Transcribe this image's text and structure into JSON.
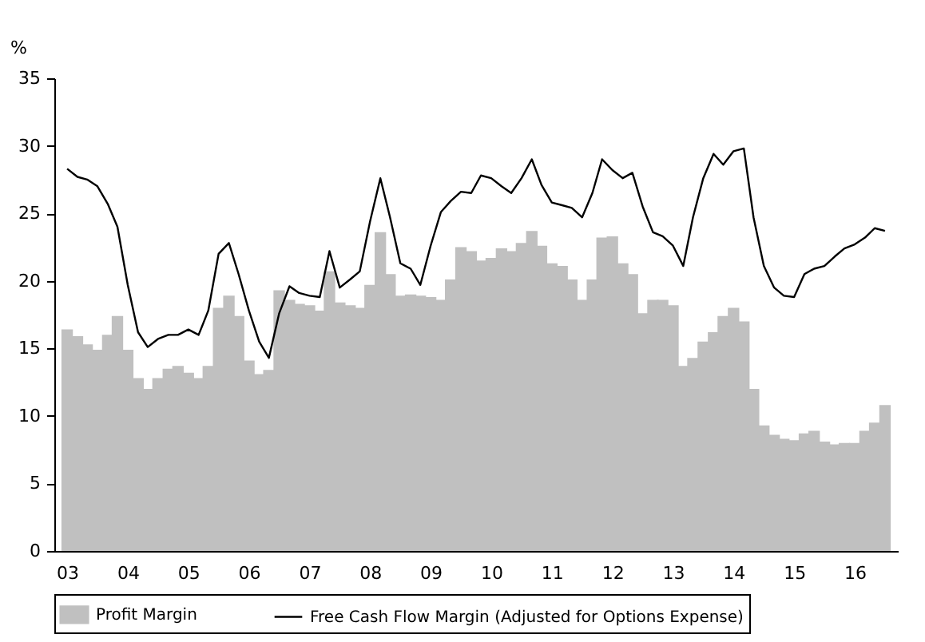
{
  "chart_data": {
    "type": "bar",
    "ylabel": "%",
    "x": [
      2003,
      2003.17,
      2003.33,
      2003.5,
      2003.67,
      2003.83,
      2004,
      2004.17,
      2004.33,
      2004.5,
      2004.67,
      2004.83,
      2005,
      2005.17,
      2005.33,
      2005.5,
      2005.67,
      2005.83,
      2006,
      2006.17,
      2006.33,
      2006.5,
      2006.67,
      2006.83,
      2007,
      2007.17,
      2007.33,
      2007.5,
      2007.67,
      2007.83,
      2008,
      2008.17,
      2008.33,
      2008.5,
      2008.67,
      2008.83,
      2009,
      2009.17,
      2009.33,
      2009.5,
      2009.67,
      2009.83,
      2010,
      2010.17,
      2010.33,
      2010.5,
      2010.67,
      2010.83,
      2011,
      2011.17,
      2011.33,
      2011.5,
      2011.67,
      2011.83,
      2012,
      2012.17,
      2012.33,
      2012.5,
      2012.67,
      2012.83,
      2013,
      2013.17,
      2013.33,
      2013.5,
      2013.67,
      2013.83,
      2014,
      2014.17,
      2014.33,
      2014.5,
      2014.67,
      2014.83,
      2015,
      2015.17,
      2015.33,
      2015.5,
      2015.67,
      2015.83,
      2016,
      2016.17,
      2016.33,
      2016.5
    ],
    "series": [
      {
        "name": "Profit Margin",
        "color": "#c0c0c0",
        "values": [
          16.4,
          15.9,
          15.3,
          14.9,
          16.0,
          17.4,
          14.9,
          12.8,
          12.0,
          12.8,
          13.5,
          13.7,
          13.2,
          12.8,
          13.7,
          18.0,
          18.9,
          17.4,
          14.1,
          13.1,
          13.4,
          19.3,
          18.6,
          18.3,
          18.2,
          17.8,
          20.7,
          18.4,
          18.2,
          18.0,
          19.7,
          23.6,
          20.5,
          18.9,
          19.0,
          18.9,
          18.8,
          18.6,
          20.1,
          22.5,
          22.2,
          21.5,
          21.7,
          22.4,
          22.2,
          22.8,
          23.7,
          22.6,
          21.3,
          21.1,
          20.1,
          18.6,
          20.1,
          23.2,
          23.3,
          21.3,
          20.5,
          17.6,
          18.6,
          18.6,
          18.2,
          13.7,
          14.3,
          15.5,
          16.2,
          17.4,
          18.0,
          17.0,
          12.0,
          9.3,
          8.6,
          8.3,
          8.2,
          8.7,
          8.9,
          8.1,
          7.9,
          8.0,
          8.0,
          8.9,
          9.5,
          10.8
        ]
      },
      {
        "name": "Free Cash Flow Margin (Adjusted for Options Expense)",
        "type": "line",
        "color": "#000000",
        "values": [
          28.3,
          27.7,
          27.5,
          27.0,
          25.7,
          24.0,
          19.7,
          16.2,
          15.1,
          15.7,
          16.0,
          16.0,
          16.4,
          16.0,
          17.8,
          22.0,
          22.8,
          20.5,
          17.8,
          15.5,
          14.3,
          17.6,
          19.6,
          19.1,
          18.9,
          18.8,
          22.2,
          19.5,
          20.1,
          20.7,
          24.4,
          27.6,
          24.7,
          21.3,
          20.9,
          19.7,
          22.6,
          25.1,
          25.9,
          26.6,
          26.5,
          27.8,
          27.6,
          27.0,
          26.5,
          27.6,
          29.0,
          27.1,
          25.8,
          25.6,
          25.4,
          24.7,
          26.5,
          29.0,
          28.2,
          27.6,
          28.0,
          25.5,
          23.6,
          23.3,
          22.6,
          21.1,
          24.7,
          27.6,
          29.4,
          28.6,
          29.6,
          29.8,
          24.7,
          21.1,
          19.5,
          18.9,
          18.8,
          20.5,
          20.9,
          21.1,
          21.8,
          22.4,
          22.7,
          23.2,
          23.9,
          23.7
        ]
      }
    ],
    "xlim": [
      2002.92,
      2016.58
    ],
    "xticks": [
      {
        "value": 2003,
        "label": "03"
      },
      {
        "value": 2004,
        "label": "04"
      },
      {
        "value": 2005,
        "label": "05"
      },
      {
        "value": 2006,
        "label": "06"
      },
      {
        "value": 2007,
        "label": "07"
      },
      {
        "value": 2008,
        "label": "08"
      },
      {
        "value": 2009,
        "label": "09"
      },
      {
        "value": 2010,
        "label": "10"
      },
      {
        "value": 2011,
        "label": "11"
      },
      {
        "value": 2012,
        "label": "12"
      },
      {
        "value": 2013,
        "label": "13"
      },
      {
        "value": 2014,
        "label": "14"
      },
      {
        "value": 2015,
        "label": "15"
      },
      {
        "value": 2016,
        "label": "16"
      }
    ],
    "ylim": [
      0,
      35
    ],
    "yticks": [
      0,
      5,
      10,
      15,
      20,
      25,
      30,
      35
    ],
    "legend": "bottom",
    "line_style": "solid",
    "marker": "none"
  }
}
